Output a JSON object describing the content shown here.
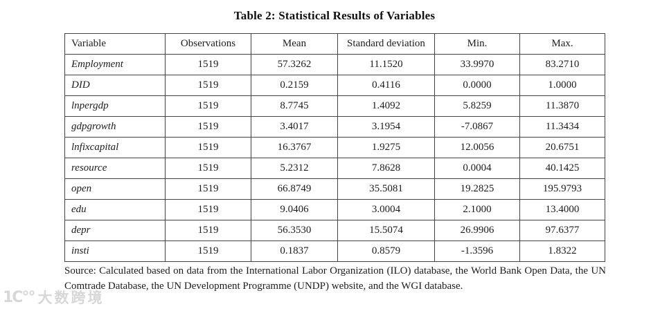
{
  "title": "Table 2: Statistical Results of Variables",
  "table": {
    "columns": [
      "Variable",
      "Observations",
      "Mean",
      "Standard deviation",
      "Min.",
      "Max."
    ],
    "rows": [
      [
        "Employment",
        "1519",
        "57.3262",
        "11.1520",
        "33.9970",
        "83.2710"
      ],
      [
        "DID",
        "1519",
        "0.2159",
        "0.4116",
        "0.0000",
        "1.0000"
      ],
      [
        "lnpergdp",
        "1519",
        "8.7745",
        "1.4092",
        "5.8259",
        "11.3870"
      ],
      [
        "gdpgrowth",
        "1519",
        "3.4017",
        "3.1954",
        "-7.0867",
        "11.3434"
      ],
      [
        "lnfixcapital",
        "1519",
        "16.3767",
        "1.9275",
        "12.0056",
        "20.6751"
      ],
      [
        "resource",
        "1519",
        "5.2312",
        "7.8628",
        "0.0004",
        "40.1425"
      ],
      [
        "open",
        "1519",
        "66.8749",
        "35.5081",
        "19.2825",
        "195.9793"
      ],
      [
        "edu",
        "1519",
        "9.0406",
        "3.0004",
        "2.1000",
        "13.4000"
      ],
      [
        "depr",
        "1519",
        "56.3530",
        "15.5074",
        "26.9906",
        "97.6377"
      ],
      [
        "insti",
        "1519",
        "0.1837",
        "0.8579",
        "-1.3596",
        "1.8322"
      ]
    ]
  },
  "source_note": "Source: Calculated based on data from the International Labor Organization (ILO) database, the World Bank Open Data, the UN Comtrade Database, the UN Development Programme (UNDP) website, and the WGI database.",
  "watermark": {
    "logo": "1C°°",
    "text": "大数跨境"
  },
  "colors": {
    "text": "#1c1c1c",
    "border": "#444444",
    "background": "#ffffff",
    "watermark": "#d7d7d7"
  }
}
